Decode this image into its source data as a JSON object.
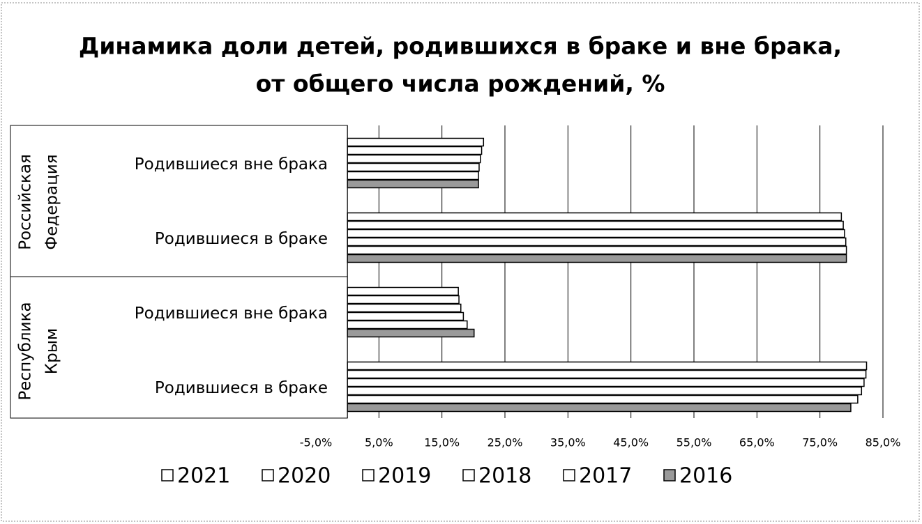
{
  "chart_data": {
    "type": "bar",
    "orientation": "horizontal",
    "title": [
      "Динамика доли детей, родившихся в браке и вне брака,",
      "от общего числа рождений, %"
    ],
    "groups": [
      {
        "name": [
          "Российская",
          "Федерация"
        ],
        "categories": [
          0,
          1
        ]
      },
      {
        "name": [
          "Республика",
          "Крым"
        ],
        "categories": [
          2,
          3
        ]
      }
    ],
    "categories": [
      "Родившиеся вне брака",
      "Родившиеся в браке",
      "Родившиеся вне брака",
      "Родившиеся в браке"
    ],
    "series": [
      {
        "name": "2021",
        "color": "#ffffff",
        "values": [
          21.6,
          78.4,
          17.6,
          82.4
        ]
      },
      {
        "name": "2020",
        "color": "#ffffff",
        "values": [
          21.3,
          78.7,
          17.7,
          82.3
        ]
      },
      {
        "name": "2019",
        "color": "#ffffff",
        "values": [
          21.1,
          78.9,
          18.0,
          82.0
        ]
      },
      {
        "name": "2018",
        "color": "#ffffff",
        "values": [
          20.9,
          79.1,
          18.4,
          81.6
        ]
      },
      {
        "name": "2017",
        "color": "#ffffff",
        "values": [
          20.8,
          79.2,
          19.0,
          81.0
        ]
      },
      {
        "name": "2016",
        "color": "#9a9a9a",
        "values": [
          20.8,
          79.2,
          20.1,
          79.9
        ]
      }
    ],
    "xlim": [
      -5,
      85
    ],
    "xticks": [
      {
        "value": -5,
        "label": "-5,0%"
      },
      {
        "value": 5,
        "label": "5,0%"
      },
      {
        "value": 15,
        "label": "15,0%"
      },
      {
        "value": 25,
        "label": "25,0%"
      },
      {
        "value": 35,
        "label": "35,0%"
      },
      {
        "value": 45,
        "label": "45,0%"
      },
      {
        "value": 55,
        "label": "55,0%"
      },
      {
        "value": 65,
        "label": "65,0%"
      },
      {
        "value": 75,
        "label": "75,0%"
      },
      {
        "value": 85,
        "label": "85,0%"
      }
    ],
    "grid": true,
    "legend": "bottom"
  }
}
